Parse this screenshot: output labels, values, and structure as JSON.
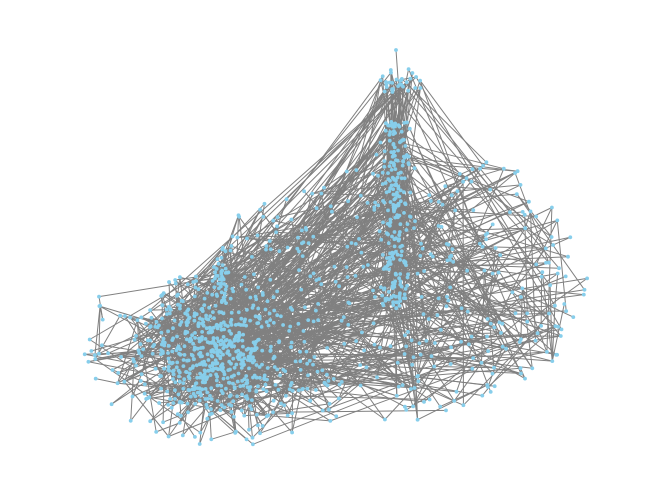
{
  "diagram": {
    "type": "network-graph",
    "layout": "force-directed",
    "colors": {
      "background": "#ffffff",
      "edge": "#808080",
      "node": "#87ceeb"
    },
    "labels_shown": false,
    "legend_shown": false,
    "axes_shown": false
  }
}
